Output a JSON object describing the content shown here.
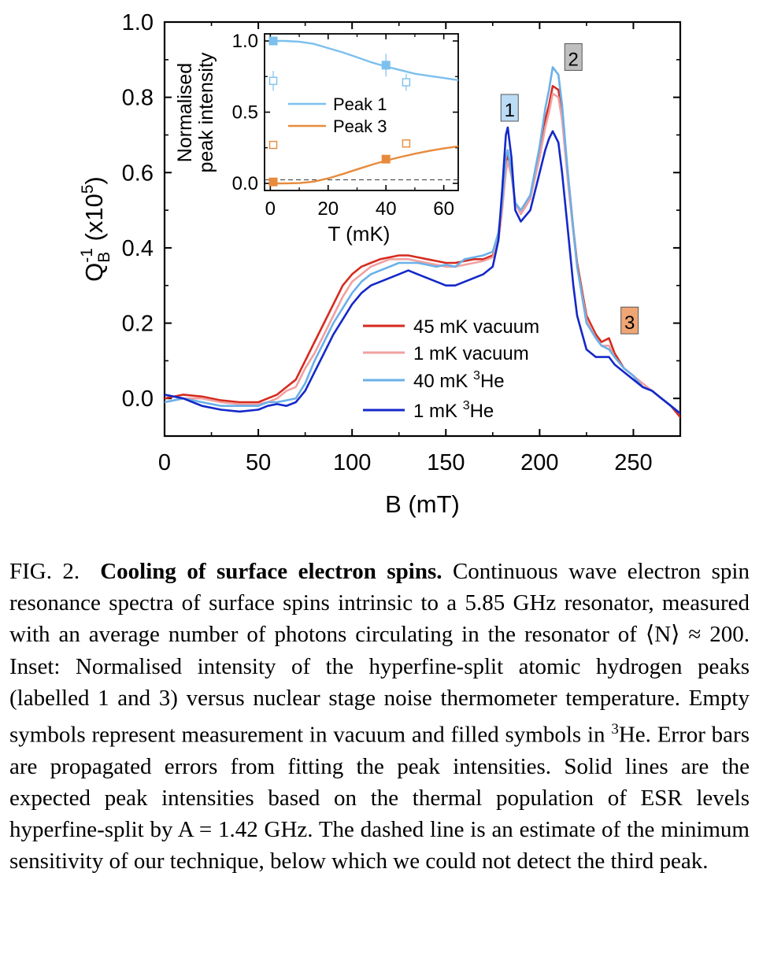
{
  "chart_data": [
    {
      "type": "line",
      "title": "",
      "xlabel": "B (mT)",
      "ylabel_main": "Q",
      "ylabel_sub": "B",
      "ylabel_sup": "-1",
      "ylabel_tail": " (x10",
      "ylabel_tail_sup": "5",
      "ylabel_end": ")",
      "xlim": [
        0,
        275
      ],
      "ylim": [
        -0.1,
        1.0
      ],
      "xticks": [
        "0",
        "50",
        "100",
        "150",
        "200",
        "250"
      ],
      "xtick_values": [
        0,
        50,
        100,
        150,
        200,
        250
      ],
      "yticks": [
        "0.0",
        "0.2",
        "0.4",
        "0.6",
        "0.8",
        "1.0"
      ],
      "ytick_values": [
        0.0,
        0.2,
        0.4,
        0.6,
        0.8,
        1.0
      ],
      "legend_position": "lower-center",
      "series": [
        {
          "name": "45 mK vacuum",
          "name_suffix": "",
          "color": "#d62a1e",
          "x": [
            0,
            10,
            20,
            30,
            40,
            50,
            55,
            60,
            65,
            70,
            75,
            80,
            85,
            90,
            95,
            100,
            105,
            110,
            115,
            120,
            125,
            130,
            135,
            140,
            145,
            150,
            155,
            160,
            165,
            170,
            175,
            178,
            180,
            182,
            183,
            185,
            187,
            190,
            195,
            200,
            203,
            205,
            207,
            210,
            212,
            215,
            218,
            220,
            225,
            230,
            233,
            237,
            240,
            245,
            250,
            255,
            260,
            265,
            270,
            275
          ],
          "y": [
            0.0,
            0.01,
            0.005,
            -0.005,
            -0.01,
            -0.01,
            0.0,
            0.01,
            0.03,
            0.05,
            0.1,
            0.15,
            0.2,
            0.25,
            0.3,
            0.33,
            0.35,
            0.36,
            0.37,
            0.375,
            0.38,
            0.38,
            0.375,
            0.37,
            0.365,
            0.36,
            0.36,
            0.365,
            0.37,
            0.37,
            0.38,
            0.42,
            0.5,
            0.62,
            0.65,
            0.6,
            0.52,
            0.49,
            0.53,
            0.65,
            0.74,
            0.78,
            0.83,
            0.82,
            0.76,
            0.6,
            0.45,
            0.36,
            0.22,
            0.17,
            0.15,
            0.16,
            0.12,
            0.08,
            0.06,
            0.03,
            0.02,
            0.0,
            -0.02,
            -0.05
          ]
        },
        {
          "name": "1 mK vacuum",
          "name_suffix": "",
          "color": "#f0a1a1",
          "x": [
            0,
            10,
            20,
            30,
            40,
            50,
            55,
            60,
            65,
            70,
            75,
            80,
            85,
            90,
            95,
            100,
            105,
            110,
            115,
            120,
            125,
            130,
            135,
            140,
            145,
            150,
            155,
            160,
            165,
            170,
            175,
            178,
            180,
            182,
            183,
            185,
            187,
            190,
            195,
            200,
            203,
            205,
            207,
            210,
            212,
            215,
            218,
            220,
            225,
            230,
            233,
            237,
            240,
            245,
            250,
            255,
            260,
            265,
            270,
            275
          ],
          "y": [
            -0.01,
            0.0,
            0.0,
            -0.01,
            -0.015,
            -0.015,
            -0.01,
            0.0,
            0.02,
            0.03,
            0.08,
            0.12,
            0.17,
            0.22,
            0.27,
            0.31,
            0.33,
            0.35,
            0.36,
            0.37,
            0.37,
            0.37,
            0.365,
            0.36,
            0.355,
            0.35,
            0.35,
            0.355,
            0.36,
            0.365,
            0.375,
            0.42,
            0.5,
            0.6,
            0.63,
            0.59,
            0.52,
            0.49,
            0.53,
            0.64,
            0.72,
            0.76,
            0.81,
            0.8,
            0.74,
            0.58,
            0.44,
            0.35,
            0.21,
            0.16,
            0.14,
            0.14,
            0.11,
            0.08,
            0.06,
            0.04,
            0.02,
            0.0,
            -0.02,
            -0.04
          ]
        },
        {
          "name": "40 mK ",
          "name_suffix": "He",
          "name_sup": "3",
          "color": "#6ab0e8",
          "x": [
            0,
            10,
            20,
            30,
            40,
            50,
            55,
            60,
            65,
            70,
            75,
            80,
            85,
            90,
            95,
            100,
            105,
            110,
            115,
            120,
            125,
            130,
            135,
            140,
            145,
            150,
            155,
            160,
            165,
            170,
            175,
            178,
            180,
            182,
            183,
            185,
            187,
            190,
            195,
            200,
            203,
            205,
            207,
            210,
            212,
            215,
            218,
            220,
            225,
            230,
            233,
            237,
            240,
            245,
            250,
            255,
            260,
            265,
            270,
            275
          ],
          "y": [
            -0.01,
            0.0,
            -0.01,
            -0.02,
            -0.02,
            -0.02,
            -0.01,
            -0.01,
            -0.005,
            0.0,
            0.04,
            0.1,
            0.15,
            0.2,
            0.24,
            0.28,
            0.31,
            0.33,
            0.34,
            0.35,
            0.36,
            0.36,
            0.36,
            0.355,
            0.35,
            0.355,
            0.35,
            0.37,
            0.375,
            0.38,
            0.39,
            0.44,
            0.52,
            0.64,
            0.66,
            0.6,
            0.52,
            0.5,
            0.54,
            0.67,
            0.77,
            0.82,
            0.88,
            0.86,
            0.78,
            0.6,
            0.45,
            0.35,
            0.2,
            0.16,
            0.14,
            0.13,
            0.11,
            0.08,
            0.06,
            0.03,
            0.02,
            0.0,
            -0.02,
            -0.04
          ]
        },
        {
          "name": "1 mK ",
          "name_suffix": "He",
          "name_sup": "3",
          "color": "#1428c8",
          "x": [
            0,
            10,
            20,
            30,
            40,
            50,
            55,
            60,
            65,
            70,
            75,
            80,
            85,
            90,
            95,
            100,
            105,
            110,
            115,
            120,
            125,
            130,
            135,
            140,
            145,
            150,
            155,
            160,
            165,
            170,
            175,
            178,
            180,
            182,
            183,
            185,
            187,
            190,
            195,
            200,
            203,
            205,
            207,
            210,
            212,
            215,
            218,
            220,
            225,
            230,
            233,
            237,
            240,
            245,
            250,
            255,
            260,
            265,
            270,
            275
          ],
          "y": [
            0.01,
            0.0,
            -0.02,
            -0.03,
            -0.035,
            -0.03,
            -0.02,
            -0.015,
            -0.02,
            -0.01,
            0.02,
            0.07,
            0.12,
            0.17,
            0.21,
            0.25,
            0.28,
            0.3,
            0.31,
            0.32,
            0.33,
            0.34,
            0.33,
            0.32,
            0.31,
            0.3,
            0.3,
            0.31,
            0.32,
            0.33,
            0.35,
            0.42,
            0.55,
            0.7,
            0.72,
            0.64,
            0.5,
            0.47,
            0.5,
            0.6,
            0.66,
            0.69,
            0.71,
            0.68,
            0.6,
            0.45,
            0.3,
            0.22,
            0.13,
            0.11,
            0.11,
            0.11,
            0.09,
            0.07,
            0.05,
            0.03,
            0.02,
            0.0,
            -0.02,
            -0.04
          ]
        }
      ],
      "annotations": [
        {
          "text": "1",
          "x": 184,
          "y": 0.77,
          "color": "#bcdcf5"
        },
        {
          "text": "2",
          "x": 218,
          "y": 0.905,
          "color": "#bfbfbf"
        },
        {
          "text": "3",
          "x": 248,
          "y": 0.205,
          "color": "#f0a574"
        }
      ]
    },
    {
      "type": "scatter",
      "title": "",
      "xlabel": "T (mK)",
      "ylabel_line1": "Normalised",
      "ylabel_line2": "peak intensity",
      "xlim": [
        -2,
        65
      ],
      "ylim": [
        -0.05,
        1.05
      ],
      "xticks": [
        "0",
        "20",
        "40",
        "60"
      ],
      "xtick_values": [
        0,
        20,
        40,
        60
      ],
      "yticks": [
        "0.0",
        "0.5",
        "1.0"
      ],
      "ytick_values": [
        0.0,
        0.5,
        1.0
      ],
      "legend_position": "center-left",
      "sensitivity_threshold": 0.025,
      "series": [
        {
          "name": "Peak 1",
          "color": "#7cc0ee",
          "curve_x": [
            0,
            5,
            10,
            15,
            20,
            25,
            30,
            35,
            40,
            45,
            50,
            55,
            60,
            65
          ],
          "curve_y": [
            1.0,
            1.0,
            0.995,
            0.98,
            0.95,
            0.92,
            0.885,
            0.85,
            0.82,
            0.795,
            0.77,
            0.755,
            0.74,
            0.725
          ],
          "filled_x": [
            1,
            40
          ],
          "filled_y": [
            1.0,
            0.83
          ],
          "filled_err": [
            0.03,
            0.08
          ],
          "empty_x": [
            1,
            47
          ],
          "empty_y": [
            0.72,
            0.71
          ],
          "empty_err": [
            0.07,
            0.06
          ]
        },
        {
          "name": "Peak 3",
          "color": "#e88a3c",
          "curve_x": [
            0,
            5,
            10,
            15,
            20,
            25,
            30,
            35,
            40,
            45,
            50,
            55,
            60,
            65
          ],
          "curve_y": [
            0.0,
            0.0,
            0.002,
            0.012,
            0.035,
            0.065,
            0.098,
            0.13,
            0.16,
            0.185,
            0.208,
            0.228,
            0.245,
            0.26
          ],
          "filled_x": [
            1,
            40
          ],
          "filled_y": [
            0.01,
            0.17
          ],
          "filled_err": [
            0.01,
            0.015
          ],
          "empty_x": [
            1,
            47
          ],
          "empty_y": [
            0.27,
            0.28
          ],
          "empty_err": [
            0.015,
            0.015
          ]
        }
      ]
    }
  ],
  "caption": {
    "label": "FIG. 2.",
    "title": "Cooling of surface electron spins.",
    "body_1": " Continuous wave electron spin resonance spectra of surface spins intrinsic to a 5.85 GHz resonator, measured with an average number of photons circulating in the resonator of ⟨N⟩ ≈ 200. Inset: Normalised intensity of the hyperfine-split atomic hydrogen peaks (labelled 1 and 3) versus nuclear stage noise thermometer temperature. Empty symbols represent measurement in vacuum and filled symbols in ",
    "sup_1": "3",
    "body_2": "He. Error bars are propagated errors from fitting the peak intensities. Solid lines are the expected peak intensities based on the thermal population of ESR levels hyperfine-split by A = 1.42 GHz. The dashed line is an estimate of the minimum sensitivity of our technique, below which we could not detect the third peak."
  }
}
